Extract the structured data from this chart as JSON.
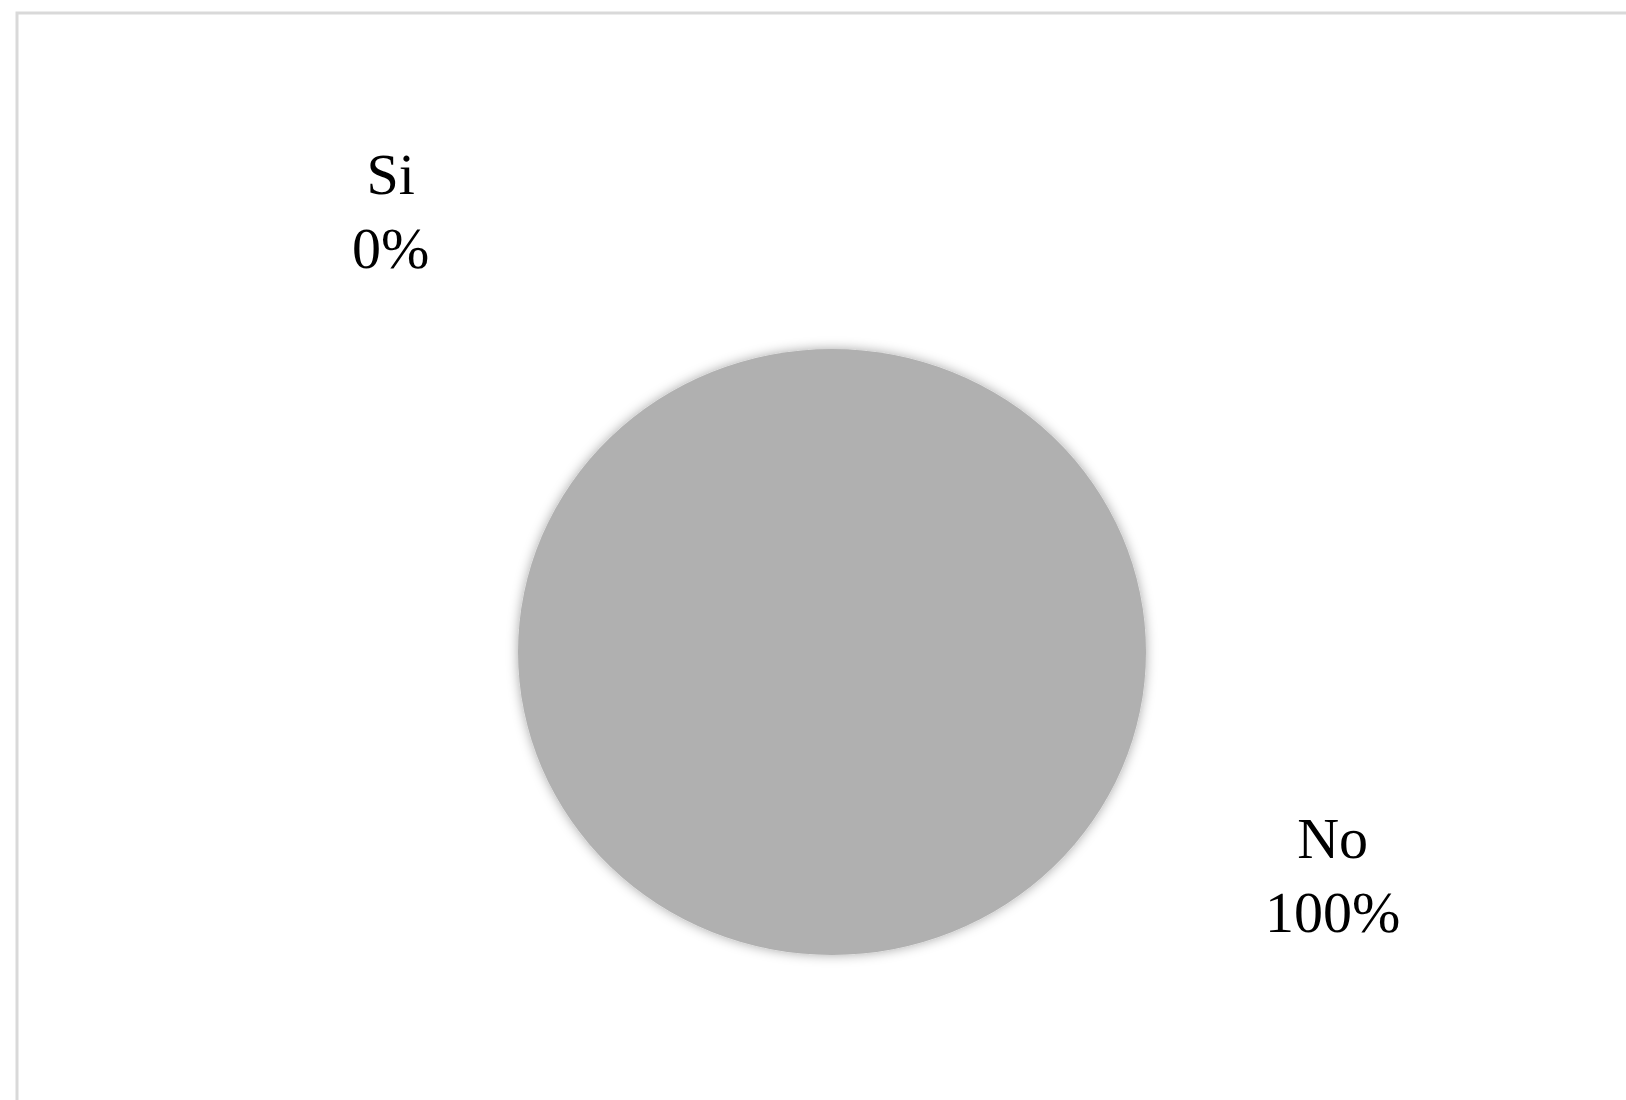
{
  "chart_data": {
    "type": "pie",
    "categories": [
      "Si",
      "No"
    ],
    "values": [
      0,
      100
    ],
    "colors": [
      "#7f7f7f",
      "#b0b0b0"
    ],
    "value_labels": [
      "0%",
      "100%"
    ]
  }
}
